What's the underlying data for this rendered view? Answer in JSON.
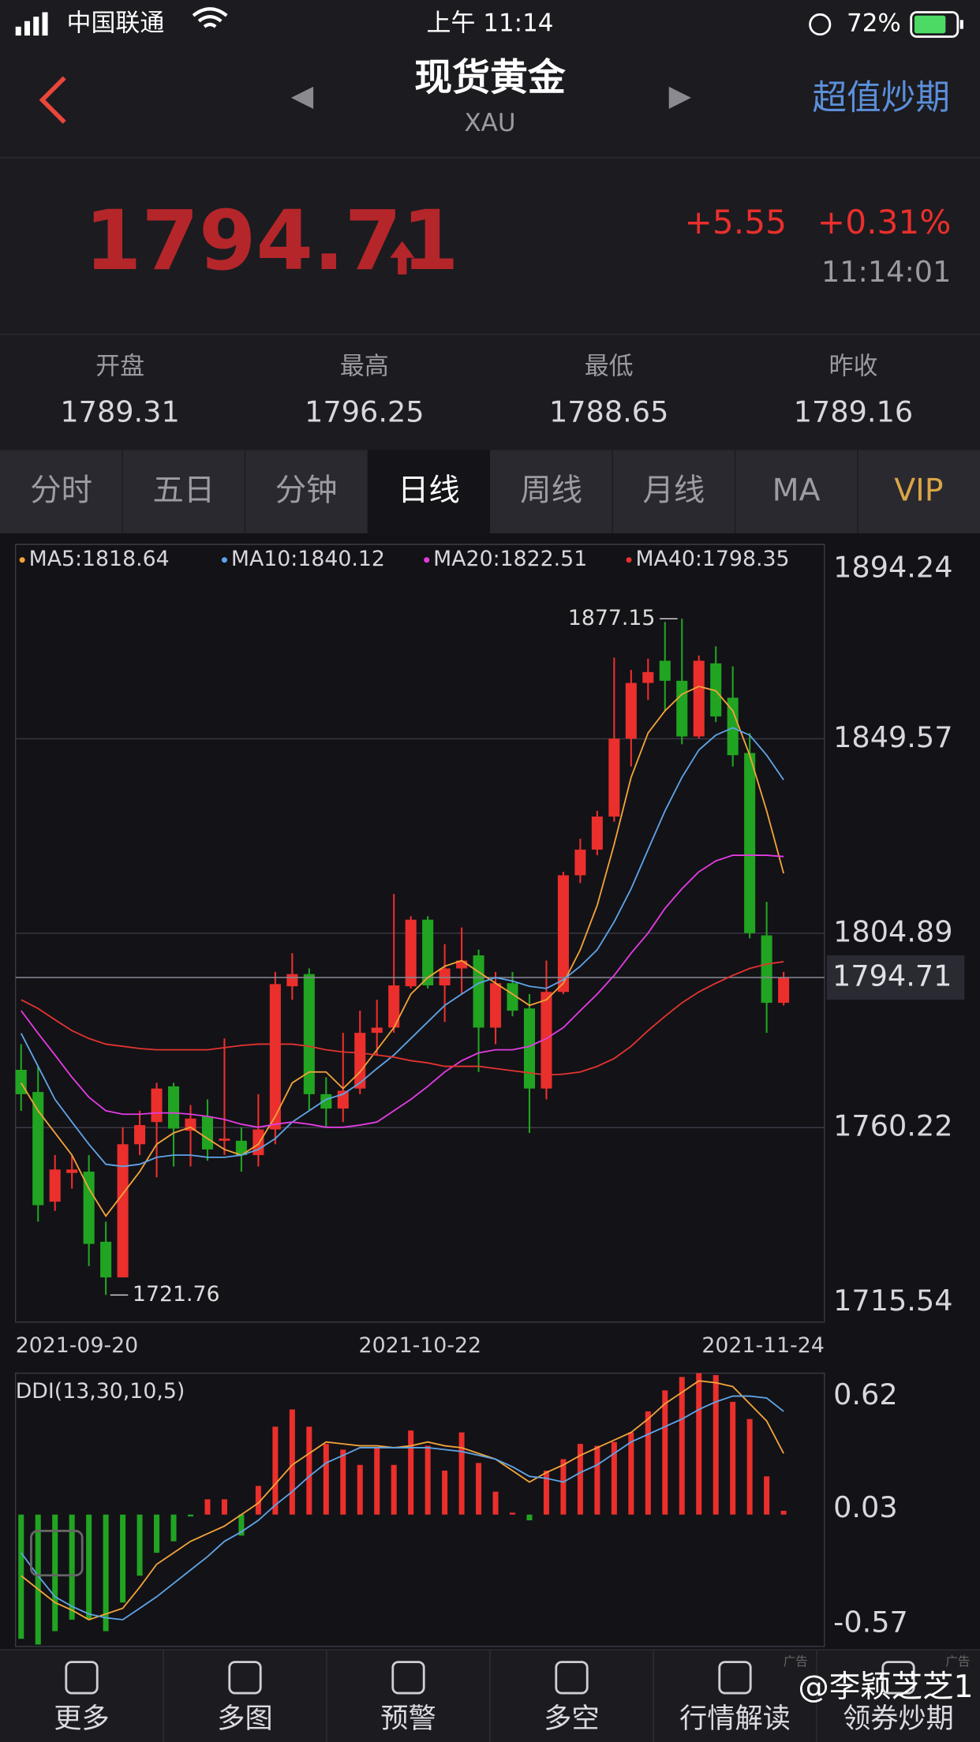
{
  "status_bar": {
    "carrier": "中国联通",
    "time": "上午 11:14",
    "battery": "72%"
  },
  "header": {
    "title": "现货黄金",
    "subtitle": "XAU",
    "action": "超值炒期"
  },
  "quote": {
    "price": "1794.71",
    "change": "+5.55",
    "change_pct": "+0.31%",
    "time": "11:14:01"
  },
  "stats": [
    {
      "label": "开盘",
      "value": "1789.31"
    },
    {
      "label": "最高",
      "value": "1796.25"
    },
    {
      "label": "最低",
      "value": "1788.65"
    },
    {
      "label": "昨收",
      "value": "1789.16"
    }
  ],
  "tabs": [
    "分时",
    "五日",
    "分钟",
    "日线",
    "周线",
    "月线",
    "MA",
    "VIP"
  ],
  "active_tab": 3,
  "chart_data": {
    "type": "candlestick",
    "grid": true,
    "ylim": [
      1715.54,
      1894.24
    ],
    "yticks": [
      1894.24,
      1849.57,
      1804.89,
      1760.22,
      1715.54
    ],
    "up_color": "#ea2f2c",
    "down_color": "#21a421",
    "categories": [
      "2021-09-20",
      null,
      null,
      null,
      null,
      null,
      null,
      null,
      null,
      null,
      null,
      null,
      null,
      null,
      null,
      null,
      null,
      null,
      null,
      null,
      null,
      null,
      null,
      null,
      "2021-10-22",
      null,
      null,
      null,
      null,
      null,
      null,
      null,
      null,
      null,
      null,
      null,
      null,
      null,
      null,
      null,
      null,
      null,
      null,
      null,
      null,
      "2021-11-24"
    ],
    "candles": [
      [
        1773.5,
        1779.4,
        1764.1,
        1767.9
      ],
      [
        1768.4,
        1774.3,
        1738.6,
        1742.4
      ],
      [
        1743.2,
        1753.9,
        1741.1,
        1750.6
      ],
      [
        1749.8,
        1753.9,
        1746.2,
        1750.6
      ],
      [
        1750.1,
        1753.9,
        1728.4,
        1733.5
      ],
      [
        1734.0,
        1738.6,
        1721.76,
        1725.8
      ],
      [
        1725.8,
        1760.3,
        1725.8,
        1756.4
      ],
      [
        1756.4,
        1764.1,
        1753.9,
        1760.8
      ],
      [
        1761.5,
        1770.5,
        1748.8,
        1769.2
      ],
      [
        1769.7,
        1770.5,
        1751.3,
        1760.0
      ],
      [
        1759.5,
        1765.4,
        1751.3,
        1762.3
      ],
      [
        1762.8,
        1766.7,
        1752.6,
        1755.2
      ],
      [
        1757.2,
        1780.7,
        1753.9,
        1757.7
      ],
      [
        1757.2,
        1760.3,
        1750.1,
        1753.9
      ],
      [
        1753.9,
        1767.9,
        1751.3,
        1759.8
      ],
      [
        1759.8,
        1796.0,
        1756.4,
        1793.2
      ],
      [
        1792.7,
        1800.3,
        1789.6,
        1795.5
      ],
      [
        1795.5,
        1796.8,
        1764.1,
        1767.9
      ],
      [
        1767.9,
        1771.8,
        1760.3,
        1764.6
      ],
      [
        1764.6,
        1782.0,
        1761.5,
        1768.7
      ],
      [
        1769.2,
        1787.1,
        1767.9,
        1782.0
      ],
      [
        1782.0,
        1789.6,
        1776.9,
        1783.2
      ],
      [
        1783.2,
        1813.9,
        1782.0,
        1792.9
      ],
      [
        1792.7,
        1808.8,
        1792.2,
        1808.0
      ],
      [
        1808.0,
        1808.8,
        1792.2,
        1792.9
      ],
      [
        1792.9,
        1802.4,
        1784.5,
        1796.8
      ],
      [
        1796.8,
        1806.2,
        1790.9,
        1798.6
      ],
      [
        1799.8,
        1801.1,
        1773.0,
        1783.2
      ],
      [
        1783.2,
        1796.0,
        1779.4,
        1793.4
      ],
      [
        1793.4,
        1796.0,
        1785.8,
        1787.1
      ],
      [
        1787.6,
        1790.9,
        1759.0,
        1769.2
      ],
      [
        1769.2,
        1798.6,
        1766.7,
        1791.4
      ],
      [
        1791.4,
        1819.0,
        1790.9,
        1818.2
      ],
      [
        1818.2,
        1826.6,
        1816.4,
        1824.1
      ],
      [
        1824.1,
        1833.0,
        1822.8,
        1831.7
      ],
      [
        1831.7,
        1868.2,
        1830.5,
        1849.6
      ],
      [
        1849.6,
        1865.4,
        1843.2,
        1862.4
      ],
      [
        1862.4,
        1868.0,
        1858.5,
        1864.9
      ],
      [
        1867.5,
        1876.4,
        1856.0,
        1862.9
      ],
      [
        1862.9,
        1877.15,
        1848.3,
        1850.1
      ],
      [
        1850.1,
        1868.7,
        1849.6,
        1867.5
      ],
      [
        1866.9,
        1870.8,
        1853.4,
        1854.7
      ],
      [
        1859.0,
        1866.2,
        1843.2,
        1845.8
      ],
      [
        1846.3,
        1850.9,
        1803.7,
        1804.9
      ],
      [
        1804.4,
        1812.1,
        1782.0,
        1788.9
      ],
      [
        1788.9,
        1796.0,
        1788.3,
        1794.71
      ]
    ],
    "high_label": "1877.15",
    "low_label": "1721.76",
    "last_label": "1794.71",
    "ma": [
      {
        "name": "MA5:1818.64",
        "color": "#f2a33a",
        "values": [
          1770.5,
          1764.1,
          1759.0,
          1753.9,
          1746.2,
          1739.9,
          1745.0,
          1750.1,
          1756.4,
          1759.0,
          1760.3,
          1757.7,
          1755.2,
          1753.9,
          1756.4,
          1762.8,
          1770.5,
          1773.0,
          1773.0,
          1769.2,
          1773.0,
          1778.1,
          1783.2,
          1790.9,
          1794.7,
          1797.3,
          1798.6,
          1796.0,
          1793.4,
          1790.9,
          1788.3,
          1789.6,
          1793.4,
          1801.1,
          1811.3,
          1825.3,
          1840.7,
          1850.9,
          1856.0,
          1859.8,
          1861.6,
          1860.6,
          1856.0,
          1845.8,
          1833.0,
          1818.64
        ]
      },
      {
        "name": "MA10:1840.12",
        "color": "#5ea4e6",
        "values": [
          1781.9,
          1774.3,
          1766.7,
          1761.5,
          1756.4,
          1751.8,
          1751.3,
          1751.8,
          1753.4,
          1753.9,
          1753.9,
          1753.4,
          1753.4,
          1753.9,
          1755.2,
          1757.7,
          1761.5,
          1764.1,
          1766.7,
          1767.9,
          1770.5,
          1773.8,
          1776.9,
          1780.7,
          1784.5,
          1788.3,
          1790.9,
          1793.4,
          1794.7,
          1793.9,
          1792.7,
          1792.2,
          1794.2,
          1797.3,
          1801.1,
          1807.5,
          1815.1,
          1824.1,
          1833.0,
          1840.7,
          1847.0,
          1850.4,
          1852.1,
          1850.4,
          1845.8,
          1840.12
        ]
      },
      {
        "name": "MA20:1822.51",
        "color": "#e23ce2",
        "values": [
          1787.1,
          1781.9,
          1776.9,
          1771.8,
          1767.2,
          1764.1,
          1763.3,
          1763.3,
          1763.6,
          1763.6,
          1763.3,
          1762.8,
          1762.1,
          1761.0,
          1760.3,
          1761.0,
          1761.5,
          1761.0,
          1760.3,
          1760.3,
          1760.8,
          1761.5,
          1764.1,
          1766.7,
          1769.7,
          1773.0,
          1775.6,
          1777.4,
          1778.1,
          1778.1,
          1778.9,
          1780.7,
          1783.2,
          1787.1,
          1790.9,
          1795.2,
          1800.3,
          1804.9,
          1810.6,
          1815.1,
          1819.0,
          1821.5,
          1822.8,
          1822.8,
          1822.8,
          1822.51
        ]
      },
      {
        "name": "MA40:1798.35",
        "color": "#e3342f",
        "values": [
          1789.6,
          1787.6,
          1785.0,
          1782.5,
          1780.7,
          1779.4,
          1778.9,
          1778.4,
          1778.1,
          1778.1,
          1778.1,
          1778.1,
          1778.6,
          1779.1,
          1779.4,
          1779.4,
          1779.4,
          1778.9,
          1778.1,
          1777.6,
          1777.4,
          1776.9,
          1776.4,
          1775.6,
          1775.1,
          1774.3,
          1774.3,
          1774.3,
          1773.8,
          1773.3,
          1772.8,
          1772.3,
          1772.5,
          1773.0,
          1774.3,
          1776.1,
          1778.9,
          1782.5,
          1785.8,
          1788.9,
          1791.4,
          1793.4,
          1795.2,
          1796.8,
          1797.8,
          1798.35
        ]
      }
    ],
    "indicator": {
      "title": "DDI(13,30,10,5)",
      "ylim": [
        -0.69,
        0.74
      ],
      "yticks": [
        0.62,
        0.03,
        -0.57
      ],
      "values": [
        -0.65,
        -0.68,
        -0.61,
        -0.55,
        -0.55,
        -0.61,
        -0.46,
        -0.32,
        -0.2,
        -0.14,
        -0.01,
        0.08,
        0.08,
        -0.11,
        0.15,
        0.46,
        0.55,
        0.46,
        0.37,
        0.34,
        0.26,
        0.35,
        0.26,
        0.44,
        0.36,
        0.23,
        0.43,
        0.27,
        0.12,
        0.01,
        -0.03,
        0.23,
        0.29,
        0.37,
        0.36,
        0.38,
        0.43,
        0.54,
        0.65,
        0.72,
        0.74,
        0.73,
        0.59,
        0.5,
        0.2,
        0.02
      ],
      "lines": [
        {
          "color": "#f2a33a",
          "values": [
            -0.32,
            -0.39,
            -0.46,
            -0.5,
            -0.55,
            -0.52,
            -0.49,
            -0.38,
            -0.26,
            -0.2,
            -0.14,
            -0.1,
            -0.06,
            0,
            0.06,
            0.16,
            0.26,
            0.32,
            0.38,
            0.37,
            0.36,
            0.36,
            0.35,
            0.36,
            0.38,
            0.36,
            0.35,
            0.32,
            0.29,
            0.23,
            0.17,
            0.22,
            0.26,
            0.31,
            0.35,
            0.39,
            0.43,
            0.5,
            0.58,
            0.64,
            0.7,
            0.69,
            0.67,
            0.58,
            0.49,
            0.32
          ]
        },
        {
          "color": "#5ea4e6",
          "values": [
            -0.2,
            -0.32,
            -0.43,
            -0.48,
            -0.52,
            -0.54,
            -0.55,
            -0.49,
            -0.43,
            -0.36,
            -0.29,
            -0.22,
            -0.14,
            -0.09,
            -0.03,
            0.05,
            0.12,
            0.2,
            0.27,
            0.31,
            0.35,
            0.35,
            0.35,
            0.35,
            0.35,
            0.34,
            0.33,
            0.31,
            0.29,
            0.25,
            0.2,
            0.19,
            0.17,
            0.22,
            0.26,
            0.32,
            0.38,
            0.42,
            0.46,
            0.5,
            0.55,
            0.59,
            0.62,
            0.62,
            0.61,
            0.54
          ]
        }
      ]
    }
  },
  "nav": [
    "更多",
    "多图",
    "预警",
    "多空",
    "行情解读",
    "领券炒期"
  ],
  "watermark": "@李颖芝芝1",
  "ad_label": "广告"
}
